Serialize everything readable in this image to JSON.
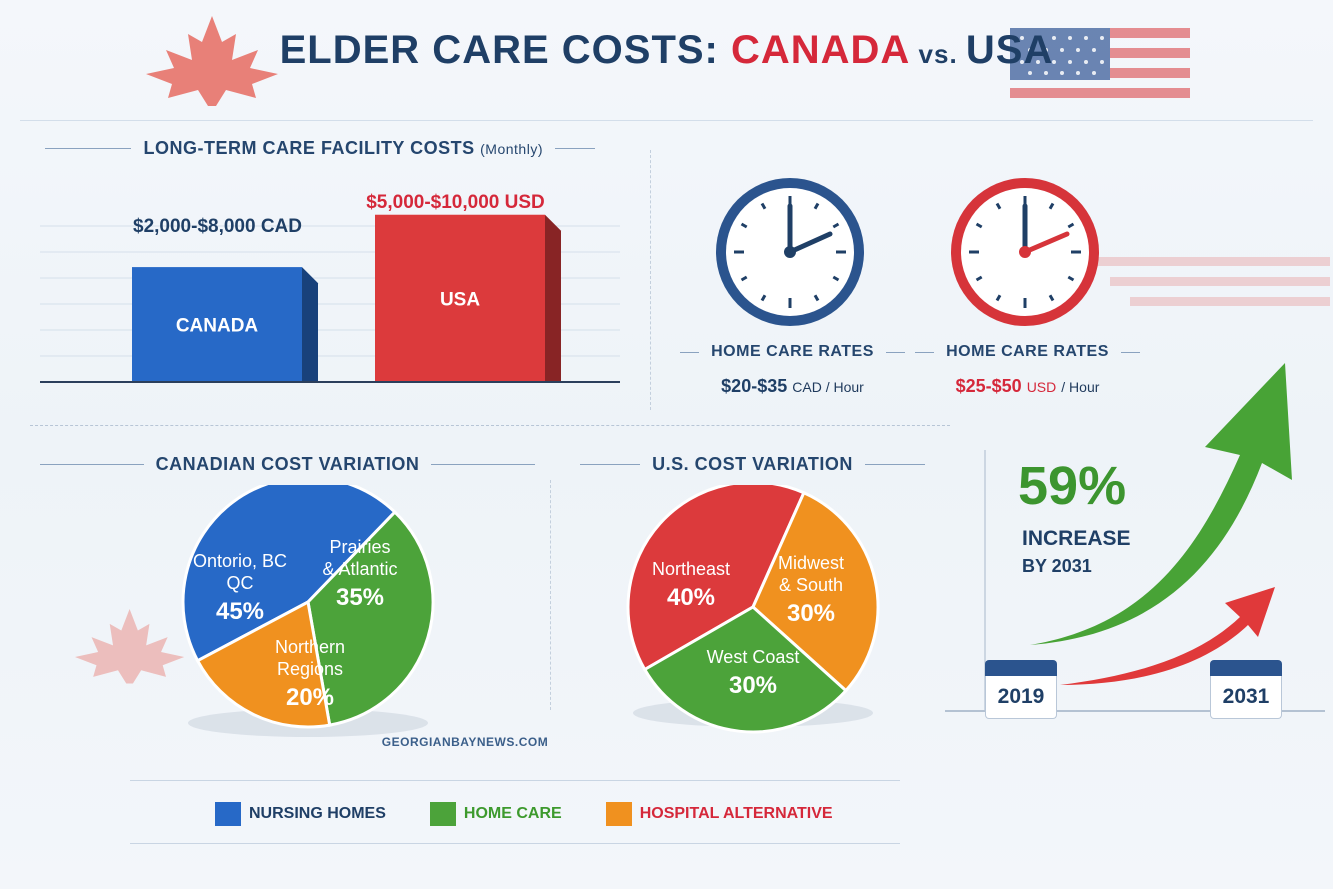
{
  "title": {
    "part1": "ELDER CARE COSTS: ",
    "part2": "CANADA",
    "part3": " vs. ",
    "part4": "USA"
  },
  "colors": {
    "canada_blue": "#2769c7",
    "usa_red": "#dc3a3c",
    "green": "#4ca33a",
    "orange": "#f0911f",
    "navy": "#1f3f66"
  },
  "ltc": {
    "heading": "LONG-TERM CARE FACILITY COSTS",
    "heading_note": "(Monthly)"
  },
  "home_care": {
    "canada": {
      "heading": "HOME CARE RATES",
      "value": "$20-$35",
      "unit": "CAD / Hour"
    },
    "usa": {
      "heading": "HOME CARE RATES",
      "value": "$25-$50",
      "unit_code": "USD",
      "unit": "/ Hour"
    }
  },
  "canadian_variation": {
    "heading": "CANADIAN COST VARIATION"
  },
  "us_variation": {
    "heading": "U.S. COST VARIATION"
  },
  "growth": {
    "value": "59%",
    "line1": "INCREASE",
    "line2": "BY 2031",
    "year_start": "2019",
    "year_end": "2031"
  },
  "source": "GEORGIANBAYNEWS.COM",
  "legend": [
    {
      "label": "NURSING HOMES",
      "color": "#2769c7",
      "text_color": "#1f3f66"
    },
    {
      "label": "HOME CARE",
      "color": "#4ca33a",
      "text_color": "#3d9a2d"
    },
    {
      "label": "HOSPITAL ALTERNATIVE",
      "color": "#f0911f",
      "text_color": "#d5283a"
    }
  ],
  "chart_data": [
    {
      "type": "bar",
      "title": "LONG-TERM CARE FACILITY COSTS (Monthly)",
      "categories": [
        "CANADA",
        "USA"
      ],
      "value_labels": [
        "$2,000-$8,000 CAD",
        "$5,000-$10,000 USD"
      ],
      "ranges": [
        [
          2000,
          8000
        ],
        [
          5000,
          10000
        ]
      ],
      "currencies": [
        "CAD",
        "USD"
      ],
      "colors": [
        "#2769c7",
        "#dc3a3c"
      ],
      "grid": true
    },
    {
      "type": "pie",
      "title": "CANADIAN COST VARIATION",
      "labels": [
        "Ontorio, BC, QC",
        "Prairies & Atlantic",
        "Northern Regions"
      ],
      "values": [
        45,
        35,
        20
      ],
      "value_labels": [
        "45%",
        "35%",
        "20%"
      ],
      "colors": [
        "#2769c7",
        "#4ca33a",
        "#f0911f"
      ]
    },
    {
      "type": "pie",
      "title": "U.S. COST VARIATION",
      "labels": [
        "Northeast",
        "Midwest & South",
        "West Coast"
      ],
      "values": [
        40,
        30,
        30
      ],
      "value_labels": [
        "40%",
        "30%",
        "30%"
      ],
      "colors": [
        "#dc3a3c",
        "#f0911f",
        "#4ca33a"
      ]
    },
    {
      "type": "line",
      "title": "59% INCREASE BY 2031",
      "x": [
        "2019",
        "2031"
      ],
      "series": []
    }
  ]
}
